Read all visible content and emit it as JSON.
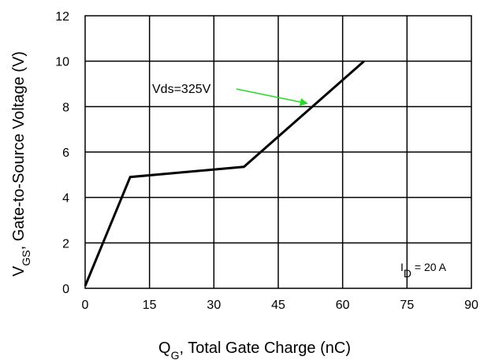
{
  "chart_data": {
    "type": "line",
    "x": [
      0,
      10.5,
      37,
      65
    ],
    "series": [
      {
        "values": [
          0.1,
          4.9,
          5.35,
          10.0
        ]
      }
    ],
    "xlim": [
      0,
      90
    ],
    "ylim": [
      0,
      12
    ],
    "xticks": [
      0,
      15,
      30,
      45,
      60,
      75,
      90
    ],
    "yticks": [
      0,
      2,
      4,
      6,
      8,
      10,
      12
    ],
    "xlabel": {
      "main": "Q",
      "sub": "G",
      "rest": ", Total Gate Charge (nC)"
    },
    "ylabel": {
      "main": "V",
      "sub": "GS",
      "rest": ", Gate-to-Source Voltage (V)"
    },
    "annotation": {
      "text": "Vds=325V",
      "arrow_color": "#22dd22",
      "points_to": {
        "x": 52.5,
        "y": 8.0
      }
    },
    "note": {
      "main": "I",
      "sub": "D",
      "rest": " = 20 A"
    },
    "grid": true,
    "line_color": "#000000"
  }
}
